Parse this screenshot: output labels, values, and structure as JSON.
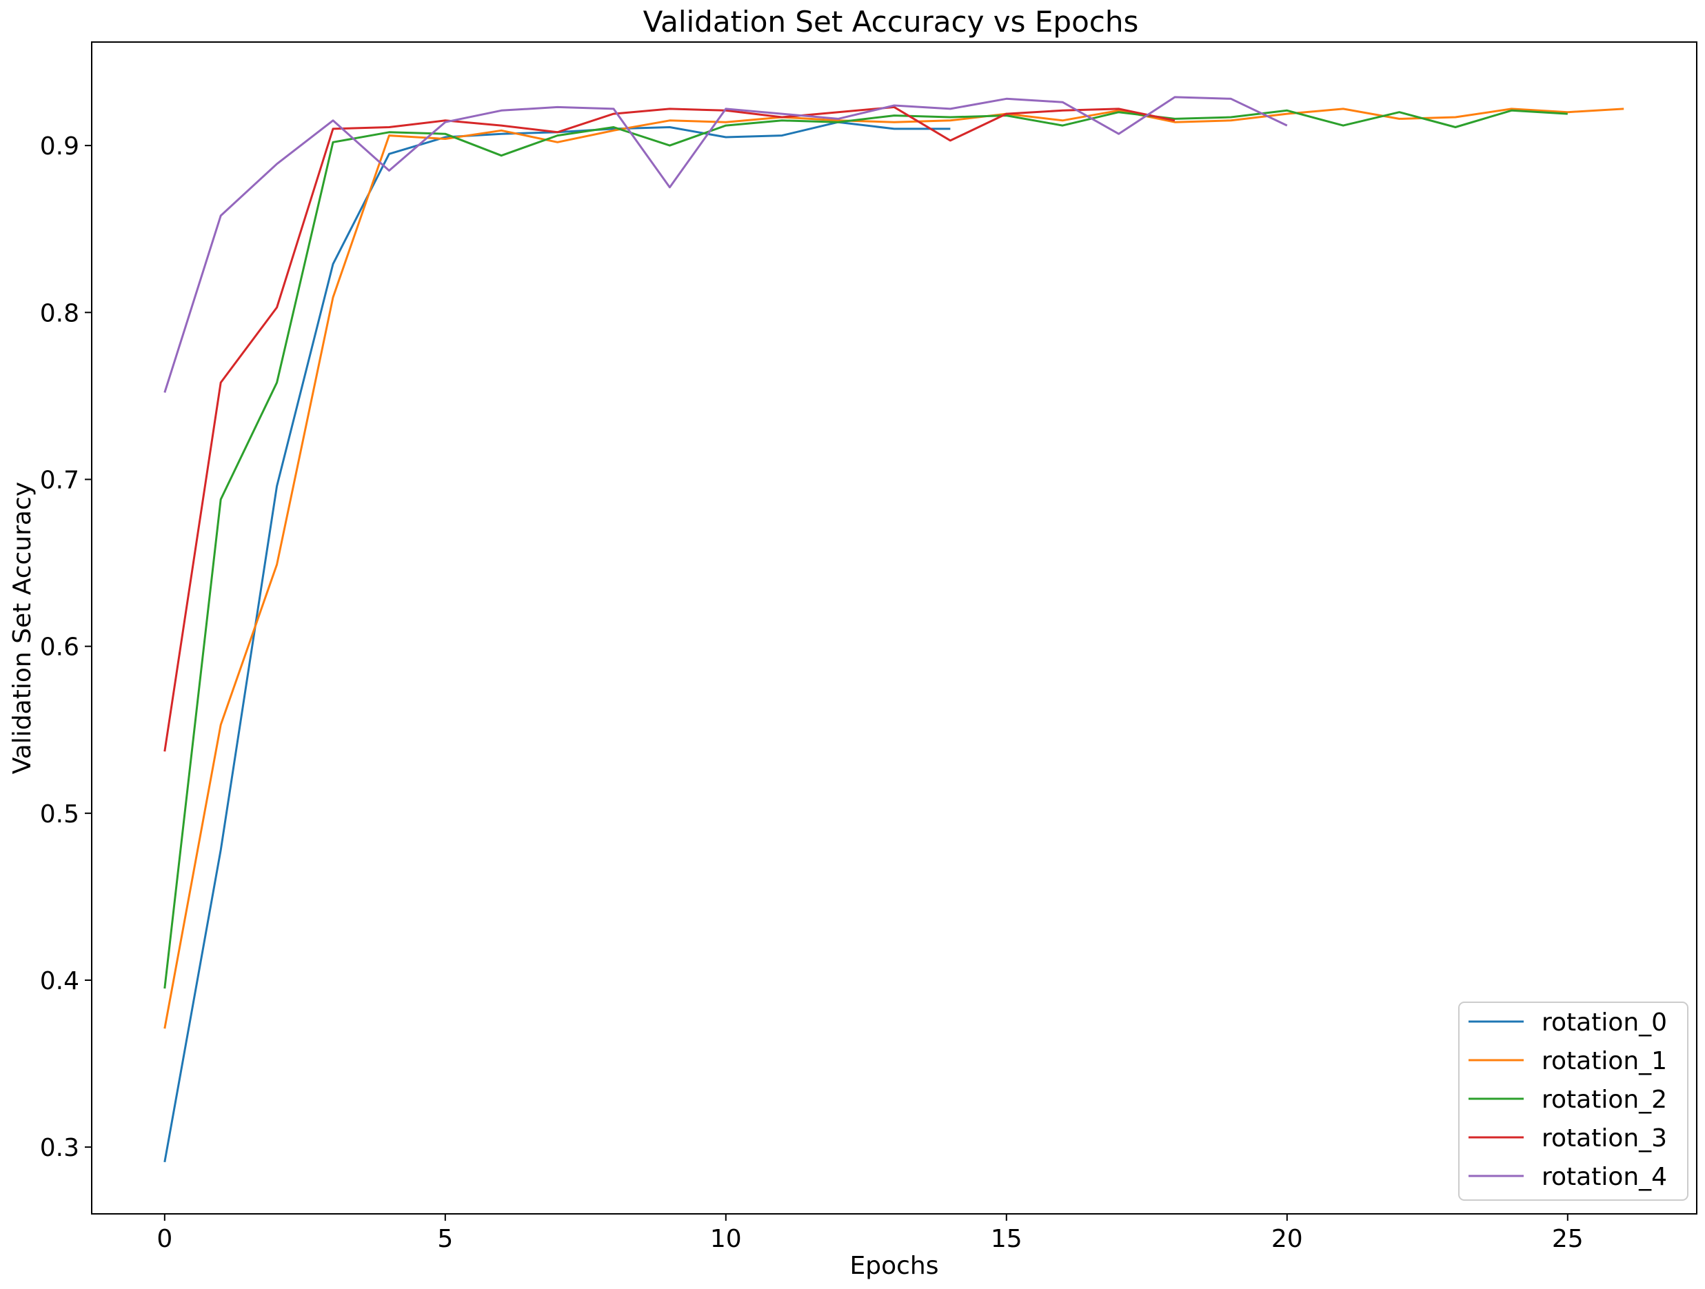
{
  "chart_data": {
    "type": "line",
    "title": "Validation Set Accuracy vs Epochs",
    "xlabel": "Epochs",
    "ylabel": "Validation Set Accuracy",
    "xlim": [
      -1.3,
      27.3
    ],
    "ylim": [
      0.26,
      0.962
    ],
    "xticks": [
      0,
      5,
      10,
      15,
      20,
      25
    ],
    "yticks": [
      0.3,
      0.4,
      0.5,
      0.6,
      0.7,
      0.8,
      0.9
    ],
    "ytick_labels": [
      "0.3",
      "0.4",
      "0.5",
      "0.6",
      "0.7",
      "0.8",
      "0.9"
    ],
    "grid": false,
    "legend_position": "lower-right",
    "series": [
      {
        "name": "rotation_0",
        "color": "#1f77b4",
        "values": [
          0.291,
          0.478,
          0.696,
          0.829,
          0.895,
          0.905,
          0.907,
          0.908,
          0.91,
          0.911,
          0.905,
          0.906,
          0.914,
          0.91,
          0.91
        ]
      },
      {
        "name": "rotation_1",
        "color": "#ff7f0e",
        "values": [
          0.371,
          0.553,
          0.649,
          0.809,
          0.906,
          0.904,
          0.909,
          0.902,
          0.909,
          0.915,
          0.914,
          0.917,
          0.915,
          0.914,
          0.915,
          0.919,
          0.915,
          0.921,
          0.914,
          0.915,
          0.919,
          0.922,
          0.916,
          0.917,
          0.922,
          0.92,
          0.922
        ]
      },
      {
        "name": "rotation_2",
        "color": "#2ca02c",
        "values": [
          0.395,
          0.688,
          0.758,
          0.902,
          0.908,
          0.907,
          0.894,
          0.906,
          0.911,
          0.9,
          0.912,
          0.915,
          0.914,
          0.918,
          0.917,
          0.918,
          0.912,
          0.92,
          0.916,
          0.917,
          0.921,
          0.912,
          0.92,
          0.911,
          0.921,
          0.919
        ]
      },
      {
        "name": "rotation_3",
        "color": "#d62728",
        "values": [
          0.537,
          0.758,
          0.803,
          0.91,
          0.911,
          0.915,
          0.912,
          0.908,
          0.919,
          0.922,
          0.921,
          0.917,
          0.92,
          0.923,
          0.903,
          0.919,
          0.921,
          0.922,
          0.915
        ]
      },
      {
        "name": "rotation_4",
        "color": "#9467bd",
        "values": [
          0.752,
          0.858,
          0.889,
          0.915,
          0.885,
          0.914,
          0.921,
          0.923,
          0.922,
          0.875,
          0.922,
          0.919,
          0.916,
          0.924,
          0.922,
          0.928,
          0.926,
          0.907,
          0.929,
          0.928,
          0.912
        ]
      }
    ]
  }
}
